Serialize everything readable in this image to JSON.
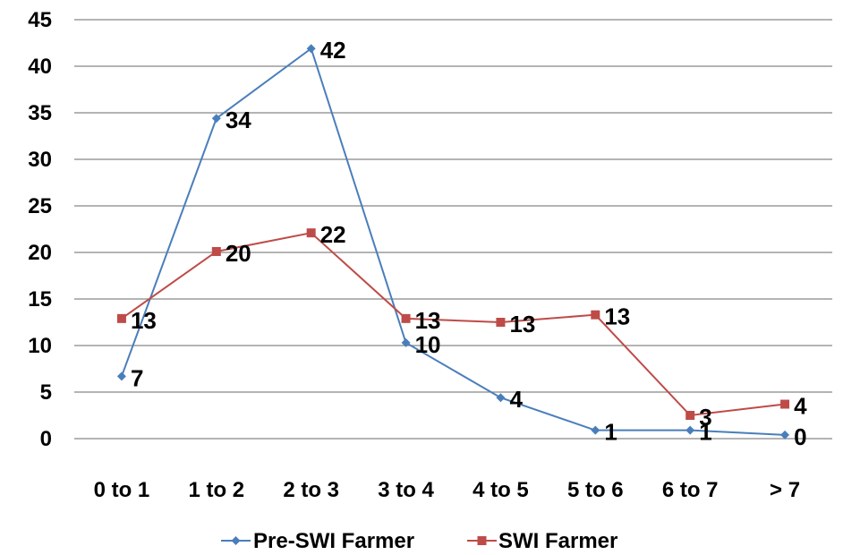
{
  "chart_data": {
    "type": "line",
    "categories": [
      "0 to 1",
      "1 to 2",
      "2 to 3",
      "3 to 4",
      "4 to 5",
      "5 to 6",
      "6 to 7",
      "> 7"
    ],
    "ylim": [
      0,
      45
    ],
    "yticks": [
      0,
      5,
      10,
      15,
      20,
      25,
      30,
      35,
      40,
      45
    ],
    "grid": true,
    "legend_position": "bottom",
    "series": [
      {
        "name": "Pre-SWI Farmer",
        "color": "#4a7ebb",
        "marker": "diamond",
        "values": [
          6.7,
          34.4,
          41.9,
          10.3,
          4.4,
          0.9,
          0.9,
          0.4
        ],
        "labels": [
          "7",
          "34",
          "42",
          "10",
          "4",
          "1",
          "1",
          "0"
        ]
      },
      {
        "name": "SWI Farmer",
        "color": "#be4b48",
        "marker": "square",
        "values": [
          12.9,
          20.1,
          22.1,
          12.9,
          12.5,
          13.3,
          2.5,
          3.7
        ],
        "labels": [
          "13",
          "20",
          "22",
          "13",
          "13",
          "13",
          "3",
          "4"
        ]
      }
    ]
  }
}
